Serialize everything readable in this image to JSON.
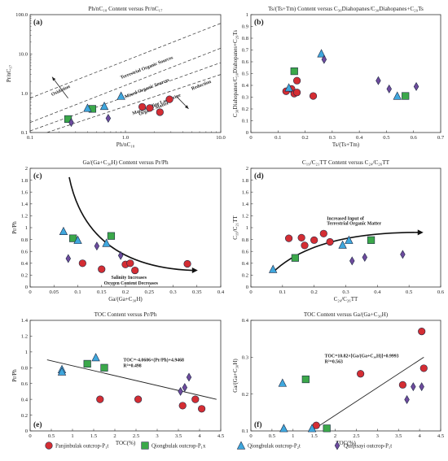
{
  "colors": {
    "red": "#d42d33",
    "green": "#3ba84a",
    "blue": "#3fa7dd",
    "purple": "#6e4b9e",
    "outline": "#1f2a44"
  },
  "legend": [
    {
      "name": "Panjinbulak outcrop-P₁t",
      "marker": "circle",
      "color": "#d42d33"
    },
    {
      "name": "Qiongbulak outcrop-P₁x",
      "marker": "square",
      "color": "#3ba84a"
    },
    {
      "name": "Qiongbulak outcrop-P₂t",
      "marker": "triangle",
      "color": "#3fa7dd"
    },
    {
      "name": "Qunjisayi outcrop-P₁t",
      "marker": "diamond",
      "color": "#6e4b9e"
    }
  ],
  "chart_data": [
    {
      "panel": "a",
      "type": "scatter",
      "title": "Ph/nC₁₈  Content versus  Pr/nC₁₇",
      "xlabel": "Ph/nC₁₈",
      "ylabel": "Pr/nC₁₇",
      "xscale": "log",
      "yscale": "log",
      "xlim": [
        0.1,
        10
      ],
      "ylim": [
        0.1,
        100
      ],
      "xticks": [
        0.1,
        1.0,
        10.0
      ],
      "yticks": [
        0.1,
        1.0,
        10.0,
        100.0
      ],
      "xtick_labels": [
        "0.1",
        "1.0",
        "10.0"
      ],
      "ytick_labels": [
        "0.1",
        "1.0",
        "10.0",
        "100.0"
      ],
      "annotations": [
        "Terrestrial Organic Sources",
        "Mixed Organic Sources",
        "Marine/Saline Lacustrine",
        "Organic Matter",
        "Oxidation",
        "Reduction"
      ],
      "series": [
        {
          "group": 0,
          "x": [
            1.5,
            1.8,
            2.3,
            2.9
          ],
          "y": [
            0.45,
            0.42,
            0.33,
            0.7
          ]
        },
        {
          "group": 1,
          "x": [
            0.25,
            0.45
          ],
          "y": [
            0.22,
            0.4
          ]
        },
        {
          "group": 2,
          "x": [
            0.4,
            0.6,
            0.9
          ],
          "y": [
            0.42,
            0.47,
            0.85
          ]
        },
        {
          "group": 3,
          "x": [
            0.27,
            0.66
          ],
          "y": [
            0.18,
            0.23
          ]
        }
      ]
    },
    {
      "panel": "b",
      "type": "scatter",
      "title": "Ts/(Ts+Tm)  Content versus  C₃₀Diahopanes/C₃₀Diahopanes+C₂₉Ts",
      "xlabel": "Ts/(Ts+Tm)",
      "ylabel": "C₃₀Diahopanes/C₃₀Diahopanes+C₂₉Ts",
      "xlim": [
        0,
        0.7
      ],
      "ylim": [
        0,
        1.0
      ],
      "xticks": [
        0,
        0.1,
        0.2,
        0.3,
        0.4,
        0.5,
        0.6,
        0.7
      ],
      "yticks": [
        0,
        0.1,
        0.2,
        0.3,
        0.4,
        0.5,
        0.6,
        0.7,
        0.8,
        0.9,
        1.0
      ],
      "series": [
        {
          "group": 0,
          "x": [
            0.13,
            0.15,
            0.16,
            0.17,
            0.17,
            0.23
          ],
          "y": [
            0.35,
            0.37,
            0.33,
            0.34,
            0.44,
            0.31
          ]
        },
        {
          "group": 1,
          "x": [
            0.16,
            0.57
          ],
          "y": [
            0.52,
            0.31
          ]
        },
        {
          "group": 2,
          "x": [
            0.14,
            0.26,
            0.54
          ],
          "y": [
            0.38,
            0.67,
            0.31
          ]
        },
        {
          "group": 3,
          "x": [
            0.27,
            0.47,
            0.51,
            0.61
          ],
          "y": [
            0.62,
            0.44,
            0.37,
            0.39
          ]
        }
      ]
    },
    {
      "panel": "c",
      "type": "scatter",
      "title": "Ga/(Ga+C₃₀H)  Content versus  Pr/Ph",
      "xlabel": "Ga/(Ga+C₃₀H)",
      "ylabel": "Pr/Ph",
      "xlim": [
        0,
        0.4
      ],
      "ylim": [
        0,
        2.0
      ],
      "xticks": [
        0,
        0.05,
        0.1,
        0.15,
        0.2,
        0.25,
        0.3,
        0.35,
        0.4
      ],
      "xtick_labels": [
        "0",
        "0.05",
        "0.1",
        "0.15",
        "0.2",
        "0.25",
        "0.3",
        "0.35",
        "0.4"
      ],
      "yticks": [
        0,
        0.2,
        0.4,
        0.6,
        0.8,
        1.0,
        1.2,
        1.4,
        1.6,
        1.8,
        2.0
      ],
      "annotations": [
        "Salinity Increases",
        "Oxygen Content Decreases"
      ],
      "series": [
        {
          "group": 0,
          "x": [
            0.11,
            0.15,
            0.2,
            0.21,
            0.22,
            0.33
          ],
          "y": [
            0.4,
            0.3,
            0.38,
            0.4,
            0.28,
            0.39
          ]
        },
        {
          "group": 1,
          "x": [
            0.09,
            0.17
          ],
          "y": [
            0.82,
            0.86
          ]
        },
        {
          "group": 2,
          "x": [
            0.07,
            0.1,
            0.16
          ],
          "y": [
            0.94,
            0.79,
            0.74
          ]
        },
        {
          "group": 3,
          "x": [
            0.08,
            0.14,
            0.19
          ],
          "y": [
            0.48,
            0.69,
            0.53
          ]
        }
      ]
    },
    {
      "panel": "d",
      "type": "scatter",
      "title": "C₁₉/C₂₁TT  Content versus  C₂₄/C₂₆TT",
      "xlabel": "C₂₄/C₂₆TT",
      "ylabel": "C₁₉/C₂₁TT",
      "xlim": [
        0,
        0.6
      ],
      "ylim": [
        0,
        2.0
      ],
      "xticks": [
        0,
        0.1,
        0.2,
        0.3,
        0.4,
        0.5,
        0.6
      ],
      "yticks": [
        0,
        0.2,
        0.4,
        0.6,
        0.8,
        1.0,
        1.2,
        1.4,
        1.6,
        1.8,
        2.0
      ],
      "annotations": [
        "Increased Input of",
        "Terrestrial Organic Matter"
      ],
      "series": [
        {
          "group": 0,
          "x": [
            0.12,
            0.16,
            0.17,
            0.2,
            0.23,
            0.25
          ],
          "y": [
            0.82,
            0.83,
            0.7,
            0.79,
            0.9,
            0.76
          ]
        },
        {
          "group": 1,
          "x": [
            0.14,
            0.38
          ],
          "y": [
            0.49,
            0.79
          ]
        },
        {
          "group": 2,
          "x": [
            0.07,
            0.29,
            0.31
          ],
          "y": [
            0.3,
            0.71,
            0.79
          ]
        },
        {
          "group": 3,
          "x": [
            0.32,
            0.36,
            0.48
          ],
          "y": [
            0.44,
            0.5,
            0.55
          ]
        }
      ]
    },
    {
      "panel": "e",
      "type": "scatter",
      "title": "TOC  Content versus  Pr/Ph",
      "xlabel": "TOC(%)",
      "ylabel": "Pr/Ph",
      "xlim": [
        0,
        4.5
      ],
      "ylim": [
        0,
        1.4
      ],
      "xticks": [
        0,
        0.5,
        1,
        1.5,
        2,
        2.5,
        3,
        3.5,
        4,
        4.5
      ],
      "yticks": [
        0,
        0.2,
        0.4,
        0.6,
        0.8,
        1.0,
        1.2,
        1.4
      ],
      "equation": [
        "TOC=-4.0606×(Pr/Ph)+4.9468",
        "R²=0.498"
      ],
      "fit": {
        "x": [
          0.4,
          4.4
        ],
        "y": [
          0.9,
          0.4
        ]
      },
      "series": [
        {
          "group": 0,
          "x": [
            1.65,
            2.55,
            3.6,
            3.9,
            4.05
          ],
          "y": [
            0.4,
            0.4,
            0.32,
            0.4,
            0.28
          ]
        },
        {
          "group": 1,
          "x": [
            1.35,
            1.75
          ],
          "y": [
            0.85,
            0.8
          ]
        },
        {
          "group": 2,
          "x": [
            0.75,
            0.75,
            1.55
          ],
          "y": [
            0.78,
            0.75,
            0.93
          ]
        },
        {
          "group": 3,
          "x": [
            3.55,
            3.65,
            3.75
          ],
          "y": [
            0.5,
            0.55,
            0.68
          ]
        }
      ]
    },
    {
      "panel": "f",
      "type": "scatter",
      "title": "TOC  Content versus  Ga/(Ga+C₃₀H)",
      "xlabel": "TOC(%)",
      "ylabel": "Ga/(Ga+C₃₀H)",
      "xlim": [
        0,
        4.5
      ],
      "ylim": [
        0.1,
        0.4
      ],
      "xticks": [
        0,
        0.5,
        1,
        1.5,
        2,
        2.5,
        3,
        3.5,
        4,
        4.5
      ],
      "yticks": [
        0.1,
        0.2,
        0.3,
        0.4
      ],
      "equation": [
        "TOC=10.82×[Ga/(Ga+C₃₀H)]+0.9993",
        "R²=0.563"
      ],
      "fit": {
        "x": [
          1.5,
          4.1
        ],
        "y": [
          0.105,
          0.3
        ]
      },
      "series": [
        {
          "group": 0,
          "x": [
            1.55,
            2.6,
            3.6,
            4.05,
            4.1
          ],
          "y": [
            0.115,
            0.255,
            0.225,
            0.37,
            0.27
          ]
        },
        {
          "group": 1,
          "x": [
            1.3,
            1.8
          ],
          "y": [
            0.24,
            0.107
          ]
        },
        {
          "group": 2,
          "x": [
            0.75,
            0.78,
            1.45
          ],
          "y": [
            0.23,
            0.107,
            0.107
          ]
        },
        {
          "group": 3,
          "x": [
            3.7,
            3.85,
            4.05
          ],
          "y": [
            0.185,
            0.22,
            0.22
          ]
        }
      ]
    }
  ]
}
